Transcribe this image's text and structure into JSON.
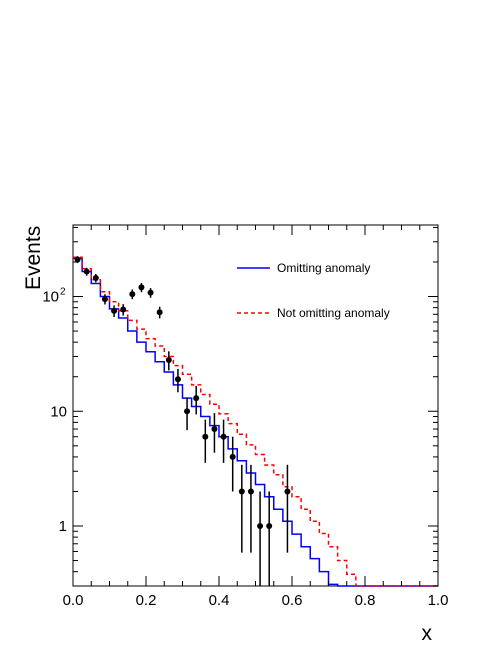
{
  "chart_data": {
    "type": "histogram",
    "xlabel": "x",
    "ylabel": "Events",
    "xlim": [
      0.0,
      1.0
    ],
    "ylim": [
      0.3,
      420
    ],
    "yscale": "log",
    "x_ticks": [
      "0.0",
      "0.2",
      "0.4",
      "0.6",
      "0.8",
      "1.0"
    ],
    "x_tick_values": [
      0.0,
      0.2,
      0.4,
      0.6,
      0.8,
      1.0
    ],
    "y_ticks": [
      {
        "value": 1,
        "label": "1",
        "sup": ""
      },
      {
        "value": 10,
        "label": "10",
        "sup": ""
      },
      {
        "value": 100,
        "label": "10",
        "sup": "2"
      }
    ],
    "bin_edges": [
      0.0,
      0.025,
      0.05,
      0.075,
      0.1,
      0.125,
      0.15,
      0.175,
      0.2,
      0.225,
      0.25,
      0.275,
      0.3,
      0.325,
      0.35,
      0.375,
      0.4,
      0.425,
      0.45,
      0.475,
      0.5,
      0.525,
      0.55,
      0.575,
      0.6,
      0.625,
      0.65,
      0.675,
      0.7,
      0.725,
      0.75,
      0.775,
      0.8,
      0.825,
      0.85,
      0.875,
      0.9,
      0.925,
      0.95,
      0.975,
      1.0
    ],
    "series": [
      {
        "name": "Omitting anomaly",
        "style": "solid",
        "color": "#0000ff",
        "values": [
          215,
          165,
          130,
          100,
          78,
          65,
          50,
          40,
          33,
          27,
          22,
          17,
          13,
          11,
          9,
          7.5,
          6,
          4.7,
          3.7,
          2.9,
          2.3,
          1.8,
          1.4,
          1.1,
          0.85,
          0.66,
          0.52,
          0.4,
          0.31,
          0.3,
          0.3,
          0.3,
          0.3,
          0.3,
          0.3,
          0.3,
          0.3,
          0.3,
          0.3,
          0.3
        ]
      },
      {
        "name": "Not omitting anomaly",
        "style": "dashed",
        "color": "#ff0000",
        "values": [
          220,
          175,
          140,
          110,
          90,
          75,
          62,
          52,
          43,
          37,
          30,
          25,
          21,
          17,
          14,
          11.5,
          9.5,
          7.8,
          6.3,
          5.1,
          4.2,
          3.4,
          2.8,
          2.2,
          1.8,
          1.4,
          1.1,
          0.86,
          0.66,
          0.5,
          0.38,
          0.3,
          0.3,
          0.3,
          0.3,
          0.3,
          0.3,
          0.3,
          0.3,
          0.3
        ]
      }
    ],
    "data_points": {
      "x": [
        0.0125,
        0.0375,
        0.0625,
        0.0875,
        0.1125,
        0.1375,
        0.1625,
        0.1875,
        0.2125,
        0.2375,
        0.2625,
        0.2875,
        0.3125,
        0.3375,
        0.3625,
        0.3875,
        0.4125,
        0.4375,
        0.4625,
        0.4875,
        0.5125,
        0.5375,
        0.5875
      ],
      "y": [
        210,
        165,
        145,
        95,
        75,
        77,
        105,
        120,
        108,
        73,
        28,
        19,
        10,
        13,
        6,
        7,
        6,
        4,
        2,
        2,
        1,
        1,
        2
      ]
    },
    "legend_position": "top-right",
    "grid": false
  }
}
